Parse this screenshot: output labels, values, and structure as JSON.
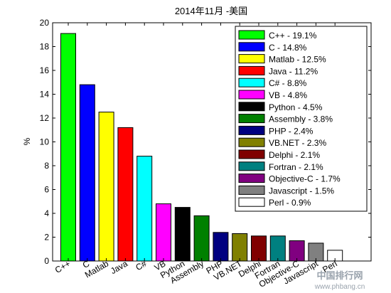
{
  "chart_data": {
    "type": "bar",
    "title": "2014年11月 -美国",
    "ylabel": "%",
    "xlabel": "",
    "ylim": [
      0,
      20
    ],
    "yticks": [
      "0",
      "2",
      "4",
      "6",
      "8",
      "10",
      "12",
      "14",
      "16",
      "18",
      "20"
    ],
    "grid": false,
    "legend_position": "top-right",
    "categories": [
      "C++",
      "C",
      "Matlab",
      "Java",
      "C#",
      "VB",
      "Python",
      "Assembly",
      "PHP",
      "VB.NET",
      "Delphi",
      "Fortran",
      "Objective-C",
      "Javascript",
      "Perl"
    ],
    "values": [
      19.1,
      14.8,
      12.5,
      11.2,
      8.8,
      4.8,
      4.5,
      3.8,
      2.4,
      2.3,
      2.1,
      2.1,
      1.7,
      1.5,
      0.9
    ],
    "colors": [
      "#00ff00",
      "#0000ff",
      "#ffff00",
      "#ff0000",
      "#00ffff",
      "#ff00ff",
      "#000000",
      "#008000",
      "#000080",
      "#808000",
      "#800000",
      "#008080",
      "#800080",
      "#808080",
      "#ffffff"
    ],
    "legend": [
      "C++ - 19.1%",
      "C - 14.8%",
      "Matlab - 12.5%",
      "Java - 11.2%",
      "C# - 8.8%",
      "VB - 4.8%",
      "Python - 4.5%",
      "Assembly - 3.8%",
      "PHP - 2.4%",
      "VB.NET - 2.3%",
      "Delphi - 2.1%",
      "Fortran - 2.1%",
      "Objective-C - 1.7%",
      "Javascript - 1.5%",
      "Perl - 0.9%"
    ]
  },
  "watermark": {
    "site_name": "中国排行网",
    "url": "www.phbang.cn"
  }
}
